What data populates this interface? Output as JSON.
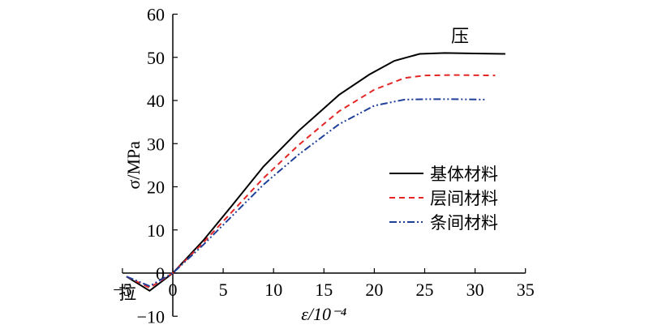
{
  "chart_data": {
    "type": "line",
    "xlabel": "ε/10⁻⁴",
    "ylabel": "σ/MPa",
    "xlim": [
      -5,
      35
    ],
    "ylim": [
      -10,
      60
    ],
    "x_ticks": [
      -5,
      0,
      5,
      10,
      15,
      20,
      25,
      30,
      35
    ],
    "y_ticks": [
      -10,
      0,
      10,
      20,
      30,
      40,
      50,
      60
    ],
    "grid": false,
    "legend_position": "center-right",
    "annotations": [
      {
        "text": "压",
        "x": 28.5,
        "y": 53.5
      },
      {
        "text": "拉",
        "x": -4.5,
        "y": -6
      }
    ],
    "series": [
      {
        "name": "基体材料",
        "color": "#000000",
        "dash": "solid",
        "x": [
          -4.6,
          -2.3,
          0,
          3,
          6,
          9,
          12.5,
          16.5,
          19.5,
          22,
          24.5,
          27,
          30,
          33
        ],
        "y": [
          -0.8,
          -4.1,
          0,
          7.5,
          16,
          24.7,
          33,
          41.3,
          46,
          49.2,
          50.8,
          51,
          50.9,
          50.8
        ]
      },
      {
        "name": "层间材料",
        "color": "#e32626",
        "dash": "dashed",
        "x": [
          -4.6,
          -2.3,
          0,
          3,
          6,
          9,
          12.5,
          16.5,
          20,
          23,
          25,
          28,
          32
        ],
        "y": [
          -0.8,
          -3.4,
          0,
          7,
          14.5,
          22,
          29.7,
          37.5,
          42.5,
          45.2,
          45.8,
          45.9,
          45.8
        ]
      },
      {
        "name": "条间材料",
        "color": "#1f3f99",
        "dash": "dashdotdot",
        "x": [
          -4.6,
          -2.3,
          0,
          3,
          6,
          9,
          12.5,
          16.5,
          20,
          23,
          25,
          28,
          31
        ],
        "y": [
          -0.8,
          -3.0,
          0,
          6.5,
          13.5,
          20.5,
          27.5,
          34.5,
          38.8,
          40.2,
          40.3,
          40.3,
          40.2
        ]
      }
    ]
  }
}
